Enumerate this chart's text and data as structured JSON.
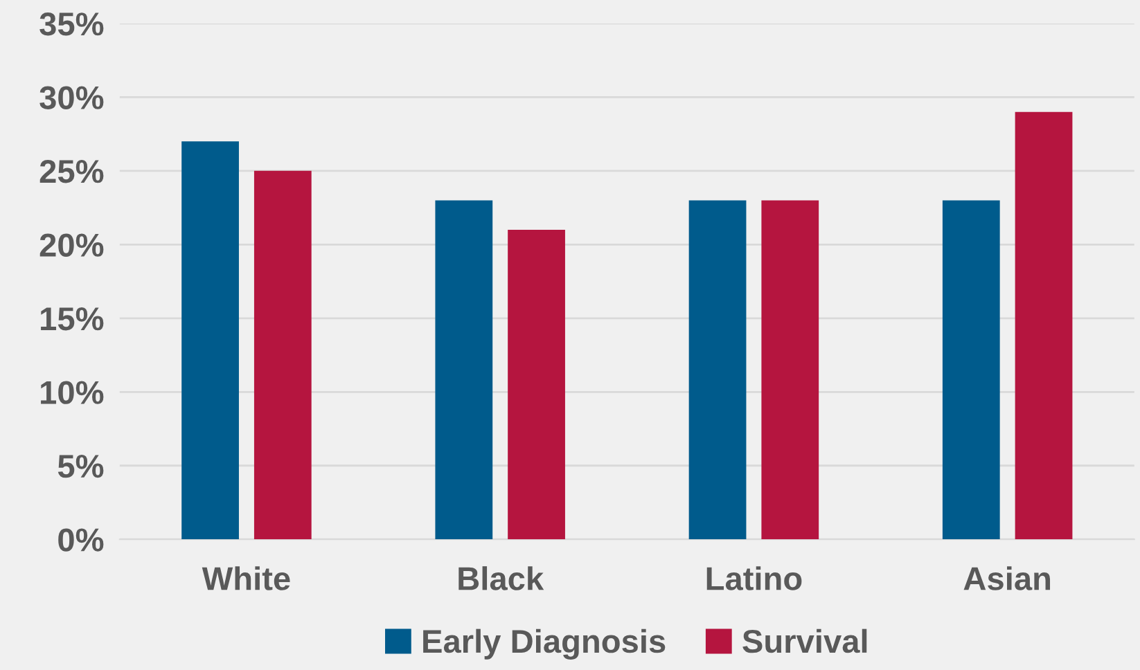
{
  "chart_data": {
    "type": "bar",
    "categories": [
      "White",
      "Black",
      "Latino",
      "Asian"
    ],
    "series": [
      {
        "name": "Early Diagnosis",
        "color": "#005b8c",
        "values": [
          27,
          23,
          23,
          23
        ]
      },
      {
        "name": "Survival",
        "color": "#b5153f",
        "values": [
          25,
          21,
          23,
          29
        ]
      }
    ],
    "ylim": [
      0,
      35
    ],
    "yticks": [
      {
        "value": 0,
        "label": "0%"
      },
      {
        "value": 5,
        "label": "5%"
      },
      {
        "value": 10,
        "label": "10%"
      },
      {
        "value": 15,
        "label": "15%"
      },
      {
        "value": 20,
        "label": "20%"
      },
      {
        "value": 25,
        "label": "25%"
      },
      {
        "value": 30,
        "label": "30%"
      },
      {
        "value": 35,
        "label": "35%"
      }
    ],
    "grid": "y",
    "legend": "bottom"
  }
}
